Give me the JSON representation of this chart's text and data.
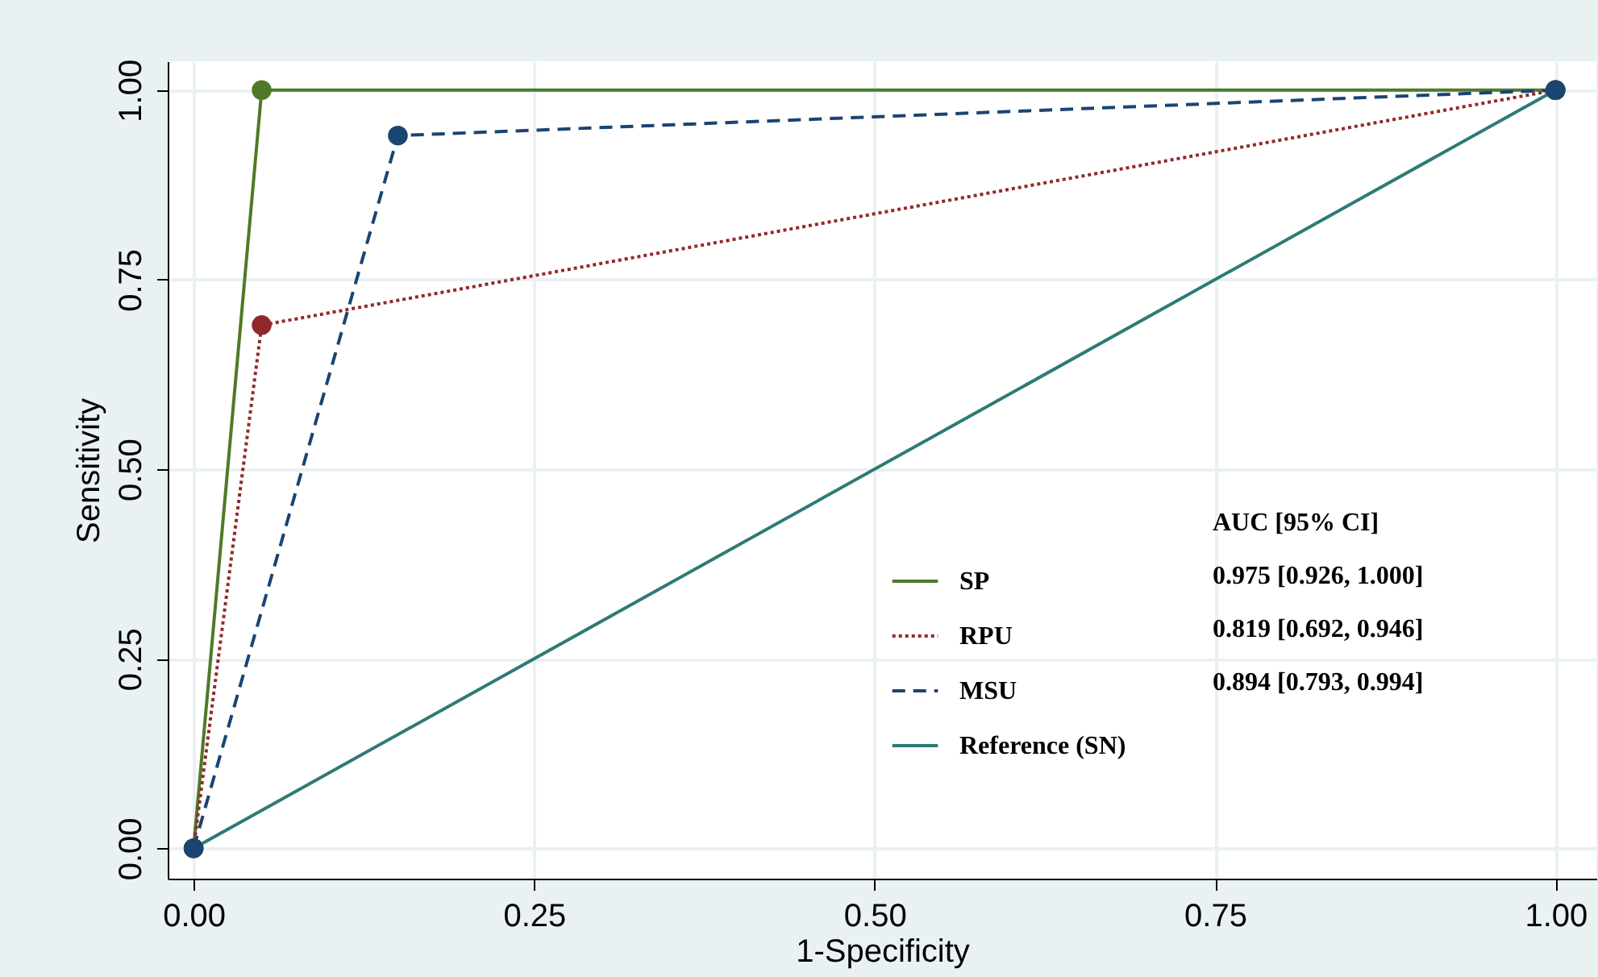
{
  "chart_data": {
    "type": "line",
    "xlabel": "1-Specificity",
    "ylabel": "Sensitivity",
    "xlim": [
      -0.019,
      1.03
    ],
    "ylim": [
      -0.04,
      1.038
    ],
    "xticks": [
      {
        "value": 0,
        "label": "0.00"
      },
      {
        "value": 0.25,
        "label": "0.25"
      },
      {
        "value": 0.5,
        "label": "0.50"
      },
      {
        "value": 0.75,
        "label": "0.75"
      },
      {
        "value": 1,
        "label": "1.00"
      }
    ],
    "yticks": [
      {
        "value": 0,
        "label": "0.00"
      },
      {
        "value": 0.25,
        "label": "0.25"
      },
      {
        "value": 0.5,
        "label": "0.50"
      },
      {
        "value": 0.75,
        "label": "0.75"
      },
      {
        "value": 1,
        "label": "1.00"
      }
    ],
    "grid": true,
    "legend": "bottom right",
    "legend_title": "AUC [95% CI]",
    "annotations": [
      "0.975 [0.926, 1.000]",
      "0.819 [0.692, 0.946]",
      "0.894 [0.793, 0.994]"
    ],
    "series": [
      {
        "name": "SP",
        "color": "#4e7a28",
        "x": [
          0,
          0.05,
          1
        ],
        "values": [
          0,
          1,
          1
        ],
        "marker": "circle",
        "line_style": "solid"
      },
      {
        "name": "RPU",
        "color": "#93282c",
        "x": [
          0,
          0.05,
          1
        ],
        "values": [
          0,
          0.69,
          1
        ],
        "marker": "circle",
        "line_style": "dotted"
      },
      {
        "name": "MSU",
        "color": "#1a4472",
        "x": [
          0,
          0.15,
          1
        ],
        "values": [
          0,
          0.94,
          1
        ],
        "marker": "circle",
        "line_style": "dashed"
      },
      {
        "name": "Reference (SN)",
        "color": "#2f7a74",
        "x": [
          0,
          1
        ],
        "values": [
          0,
          1
        ],
        "marker": "none",
        "line_style": "solid"
      }
    ]
  }
}
